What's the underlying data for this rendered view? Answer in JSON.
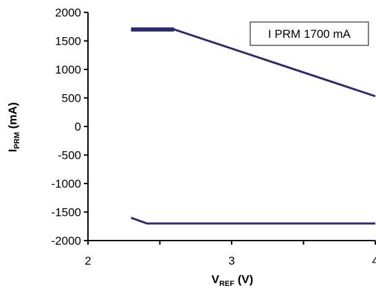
{
  "chart_data": {
    "type": "line",
    "title": "",
    "xlabel_main": "V",
    "xlabel_sub": "REF",
    "xlabel_unit": " (V)",
    "ylabel_main": "I",
    "ylabel_sub": "PRM",
    "ylabel_unit": " (mA)",
    "xlim": [
      2,
      4
    ],
    "ylim": [
      -2000,
      2000
    ],
    "x_ticks": [
      2,
      2.5,
      3,
      3.5,
      4
    ],
    "x_tick_labels": [
      "2",
      "",
      "3",
      "",
      "4"
    ],
    "y_ticks": [
      2000,
      1500,
      1000,
      500,
      0,
      -500,
      -1000,
      -1500,
      -2000
    ],
    "y_tick_labels": [
      "2000",
      "1500",
      "1000",
      "500",
      "0",
      "-500",
      "-1000",
      "-1500",
      "-2000"
    ],
    "grid": false,
    "legend_label": "I PRM 1700 mA",
    "legend_position": "top-right",
    "series": [
      {
        "color": "#2b2b6e",
        "points": [
          [
            2.3,
            1700
          ],
          [
            2.6,
            1700
          ],
          [
            4.0,
            530
          ]
        ],
        "thick_segment": [
          [
            2.3,
            1700
          ],
          [
            2.6,
            1700
          ]
        ]
      },
      {
        "color": "#2b2b6e",
        "points": [
          [
            2.3,
            -1600
          ],
          [
            2.41,
            -1700
          ],
          [
            4.0,
            -1700
          ]
        ]
      }
    ]
  }
}
